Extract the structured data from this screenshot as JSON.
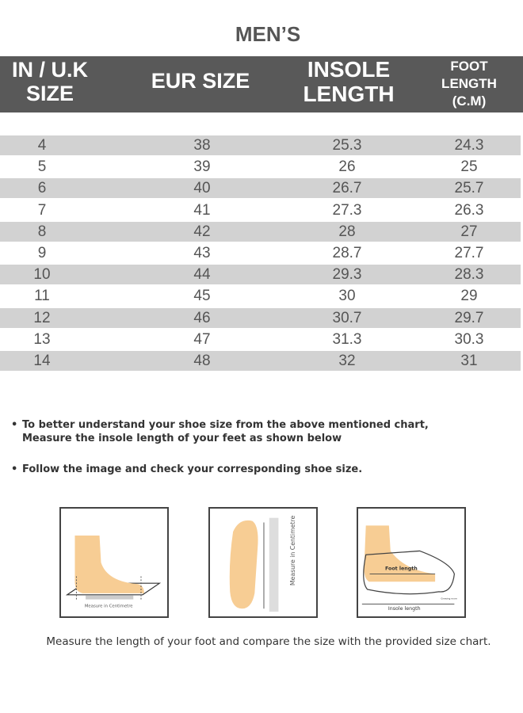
{
  "title": "MEN’S",
  "headers": {
    "in_uk_size": [
      "IN / U.K",
      "SIZE"
    ],
    "eur_size": "EUR SIZE",
    "insole_length": [
      "INSOLE",
      "LENGTH"
    ],
    "foot_length": [
      "FOOT",
      "LENGTH",
      "(C.M)"
    ]
  },
  "rows": [
    [
      "4",
      "38",
      "25.3",
      "24.3"
    ],
    [
      "5",
      "39",
      "26",
      "25"
    ],
    [
      "6",
      "40",
      "26.7",
      "25.7"
    ],
    [
      "7",
      "41",
      "27.3",
      "26.3"
    ],
    [
      "8",
      "42",
      "28",
      "27"
    ],
    [
      "9",
      "43",
      "28.7",
      "27.7"
    ],
    [
      "10",
      "44",
      "29.3",
      "28.3"
    ],
    [
      "11",
      "45",
      "30",
      "29"
    ],
    [
      "12",
      "46",
      "30.7",
      "29.7"
    ],
    [
      "13",
      "47",
      "31.3",
      "30.3"
    ],
    [
      "14",
      "48",
      "32",
      "31"
    ]
  ],
  "instructions": [
    [
      "To better understand your shoe size from the above mentioned chart,",
      "Measure the insole length of your feet as shown below"
    ],
    [
      "Follow the image and check your corresponding shoe size."
    ]
  ],
  "illustrations": {
    "side_label": "Measure in Centimetre",
    "top_label": "Measure in Centimetre",
    "foot_length_label": "Foot length",
    "insole_length_label": "Insole length",
    "growing_room_label": "Growing room"
  },
  "caption": "Measure the length of your foot and compare the size with the provided size chart.",
  "colors": {
    "header_bg": "#595959",
    "stripe": "#d2d2d2",
    "foot": "#f7cd94"
  }
}
